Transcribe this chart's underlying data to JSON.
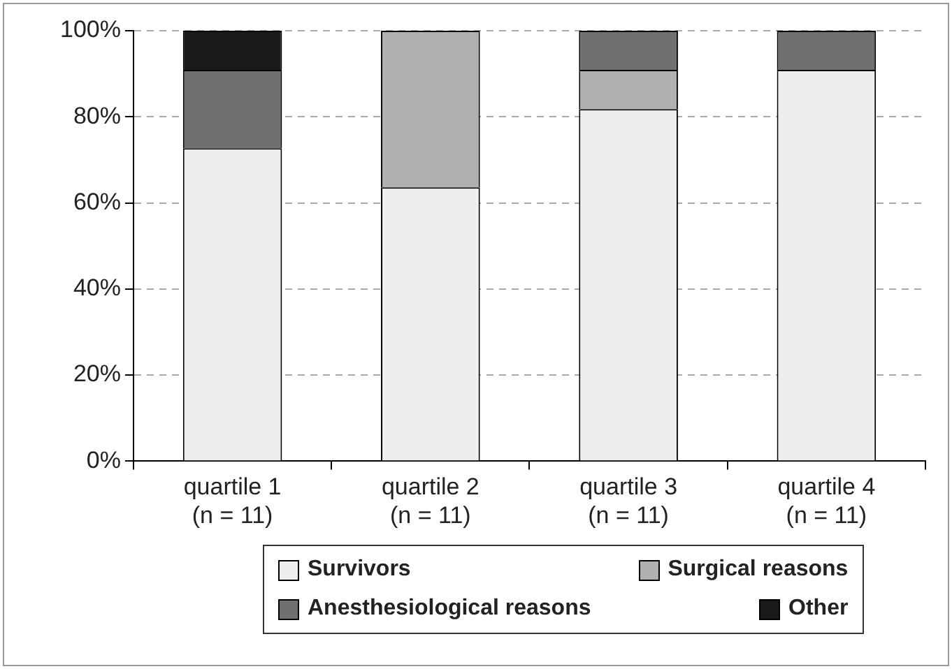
{
  "chart_data": {
    "type": "bar",
    "stacked": true,
    "categories": [
      "quartile 1\n(n = 11)",
      "quartile 2\n(n = 11)",
      "quartile 3\n(n = 11)",
      "quartile 4\n(n = 11)"
    ],
    "series": [
      {
        "name": "Survivors",
        "color": "#eeeeee",
        "values": [
          72.7,
          63.6,
          81.8,
          90.9
        ]
      },
      {
        "name": "Surgical reasons",
        "color": "#b0b0b0",
        "values": [
          0,
          36.4,
          9.1,
          0
        ]
      },
      {
        "name": "Anesthesiological reasons",
        "color": "#707070",
        "values": [
          18.2,
          0,
          9.1,
          9.1
        ]
      },
      {
        "name": "Other",
        "color": "#1a1a1a",
        "values": [
          9.1,
          0,
          0,
          0
        ]
      }
    ],
    "ylim": [
      0,
      100
    ],
    "yticks": [
      {
        "value": 0,
        "label": "0%"
      },
      {
        "value": 20,
        "label": "20%"
      },
      {
        "value": 40,
        "label": "40%"
      },
      {
        "value": 60,
        "label": "60%"
      },
      {
        "value": 80,
        "label": "80%"
      },
      {
        "value": 100,
        "label": "100%"
      }
    ],
    "grid": "y",
    "legend": "bottom"
  }
}
